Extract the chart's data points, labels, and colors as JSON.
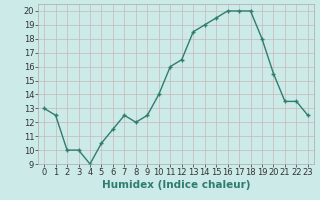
{
  "x": [
    0,
    1,
    2,
    3,
    4,
    5,
    6,
    7,
    8,
    9,
    10,
    11,
    12,
    13,
    14,
    15,
    16,
    17,
    18,
    19,
    20,
    21,
    22,
    23
  ],
  "y": [
    13,
    12.5,
    10,
    10,
    9,
    10.5,
    11.5,
    12.5,
    12,
    12.5,
    14,
    16,
    16.5,
    18.5,
    19,
    19.5,
    20,
    20,
    20,
    18,
    15.5,
    13.5,
    13.5,
    12.5
  ],
  "line_color": "#2e7d6e",
  "marker_color": "#2e7d6e",
  "bg_color": "#cceae8",
  "grid_color": "#c8b8b8",
  "xlabel": "Humidex (Indice chaleur)",
  "xlim": [
    -0.5,
    23.5
  ],
  "ylim": [
    9,
    20.5
  ],
  "yticks": [
    9,
    10,
    11,
    12,
    13,
    14,
    15,
    16,
    17,
    18,
    19,
    20
  ],
  "xticks": [
    0,
    1,
    2,
    3,
    4,
    5,
    6,
    7,
    8,
    9,
    10,
    11,
    12,
    13,
    14,
    15,
    16,
    17,
    18,
    19,
    20,
    21,
    22,
    23
  ],
  "tick_label_fontsize": 6,
  "xlabel_fontsize": 7.5,
  "linewidth": 1.0,
  "markersize": 2.5
}
